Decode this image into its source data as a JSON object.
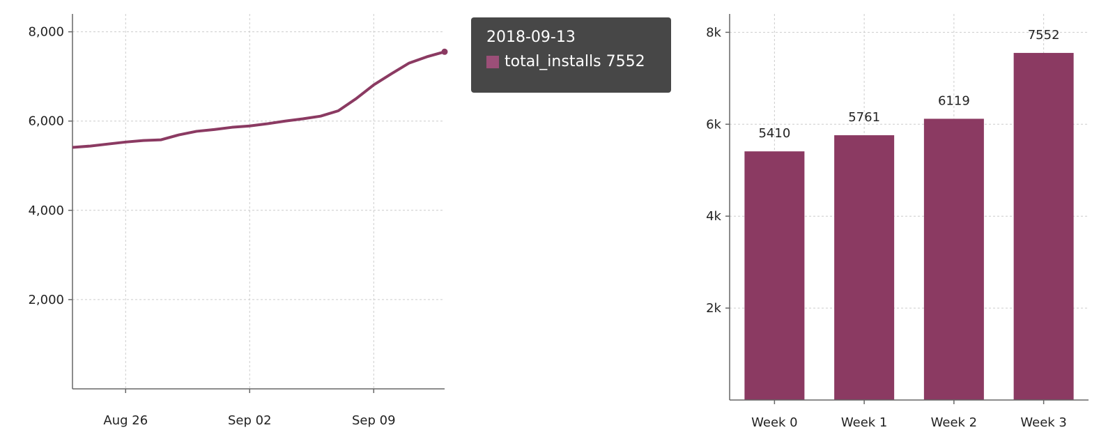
{
  "chart_data": [
    {
      "type": "line",
      "series": [
        {
          "name": "total_installs",
          "color": "#8b3a62",
          "x": [
            "2018-08-23",
            "2018-08-24",
            "2018-08-25",
            "2018-08-26",
            "2018-08-27",
            "2018-08-28",
            "2018-08-29",
            "2018-08-30",
            "2018-08-31",
            "2018-09-01",
            "2018-09-02",
            "2018-09-03",
            "2018-09-04",
            "2018-09-05",
            "2018-09-06",
            "2018-09-07",
            "2018-09-08",
            "2018-09-09",
            "2018-09-10",
            "2018-09-11",
            "2018-09-12",
            "2018-09-13"
          ],
          "values": [
            5410,
            5440,
            5485,
            5530,
            5565,
            5580,
            5690,
            5770,
            5810,
            5860,
            5890,
            5940,
            6000,
            6050,
            6110,
            6230,
            6500,
            6810,
            7060,
            7300,
            7440,
            7552
          ]
        }
      ],
      "ylim": [
        0,
        8400
      ],
      "yticks": [
        {
          "value": 2000,
          "label": "2,000"
        },
        {
          "value": 4000,
          "label": "4,000"
        },
        {
          "value": 6000,
          "label": "6,000"
        },
        {
          "value": 8000,
          "label": "8,000"
        }
      ],
      "xticks": [
        {
          "index": 3,
          "label": "Aug 26"
        },
        {
          "index": 10,
          "label": "Sep 02"
        },
        {
          "index": 17,
          "label": "Sep 09"
        }
      ],
      "grid": true,
      "tooltip": {
        "date": "2018-09-13",
        "label": "total_installs",
        "value": "7552",
        "swatch": "#9c4f78"
      }
    },
    {
      "type": "bar",
      "categories": [
        "Week 0",
        "Week 1",
        "Week 2",
        "Week 3"
      ],
      "values": [
        5410,
        5761,
        6119,
        7552
      ],
      "color": "#8b3a62",
      "ylim": [
        0,
        8400
      ],
      "yticks": [
        {
          "value": 2000,
          "label": "2k"
        },
        {
          "value": 4000,
          "label": "4k"
        },
        {
          "value": 6000,
          "label": "6k"
        },
        {
          "value": 8000,
          "label": "8k"
        }
      ],
      "grid": true
    }
  ]
}
